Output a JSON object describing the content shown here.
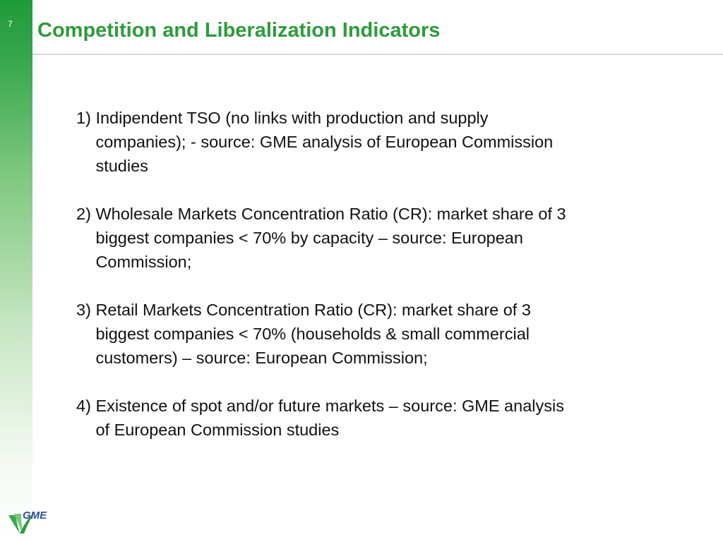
{
  "slide": {
    "page_number": "7",
    "title": "Competition and Liberalization Indicators"
  },
  "items": [
    {
      "number": "1) ",
      "text": "Indipendent TSO (no links with production and supply\ncompanies); - source: GME analysis of European Commission\nstudies"
    },
    {
      "number": "2) ",
      "text": "Wholesale Markets Concentration Ratio (CR): market share of 3\nbiggest companies  < 70% by capacity – source: European\nCommission;"
    },
    {
      "number": "3) ",
      "text": "Retail Markets Concentration Ratio (CR): market share of 3\nbiggest companies  < 70% (households & small commercial\ncustomers) – source: European Commission;"
    },
    {
      "number": "4) ",
      "text": "Existence of spot and/or future markets – source: GME analysis\nof European Commission studies"
    }
  ],
  "logo": {
    "text": "GME",
    "icon": "gme-logo-icon"
  },
  "colors": {
    "accent_green": "#2e9b3b",
    "logo_blue": "#2a4f9e"
  }
}
